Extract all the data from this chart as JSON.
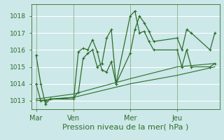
{
  "background_color": "#cce8e8",
  "grid_color": "#ffffff",
  "line_color": "#2d6e2d",
  "title": "Pression niveau de la mer( hPa )",
  "title_fontsize": 8,
  "ylabel_values": [
    1013,
    1014,
    1015,
    1016,
    1017,
    1018
  ],
  "ylim": [
    1012.5,
    1018.7
  ],
  "day_labels": [
    "Mar",
    "Ven",
    "Mer",
    "Jeu"
  ],
  "day_positions": [
    0,
    8,
    20,
    30
  ],
  "series1_x": [
    0,
    1,
    2,
    3,
    8,
    9,
    10,
    11,
    12,
    13,
    14,
    15,
    16,
    17,
    20,
    21,
    22,
    23,
    24,
    25,
    30,
    31,
    32,
    33,
    37,
    38
  ],
  "series1_y": [
    1015.7,
    1014.0,
    1012.8,
    1013.1,
    1013.1,
    1015.9,
    1016.1,
    1016.0,
    1016.6,
    1015.9,
    1014.8,
    1014.7,
    1015.3,
    1014.0,
    1015.8,
    1017.2,
    1018.0,
    1017.6,
    1017.1,
    1016.5,
    1016.7,
    1016.0,
    1017.2,
    1017.0,
    1016.0,
    1017.0
  ],
  "series2_x": [
    0,
    1,
    2,
    3,
    8,
    9,
    10,
    11,
    12,
    13,
    14,
    15,
    16,
    17,
    20,
    21,
    22,
    23,
    24,
    25,
    30,
    31,
    32,
    33,
    37,
    38
  ],
  "series2_y": [
    1014.0,
    1013.0,
    1013.0,
    1013.1,
    1013.2,
    1013.5,
    1015.5,
    1015.8,
    1016.0,
    1015.0,
    1015.2,
    1016.7,
    1017.2,
    1014.0,
    1018.0,
    1018.3,
    1017.0,
    1017.1,
    1016.5,
    1016.0,
    1016.0,
    1015.0,
    1016.0,
    1015.0,
    1015.0,
    1015.2
  ],
  "series3_x": [
    0,
    8,
    20,
    30,
    38
  ],
  "series3_y": [
    1013.0,
    1013.2,
    1014.0,
    1014.5,
    1015.0
  ],
  "series4_x": [
    0,
    8,
    20,
    30,
    38
  ],
  "series4_y": [
    1013.1,
    1013.4,
    1014.3,
    1015.0,
    1015.2
  ],
  "xlim": [
    -1,
    39
  ]
}
